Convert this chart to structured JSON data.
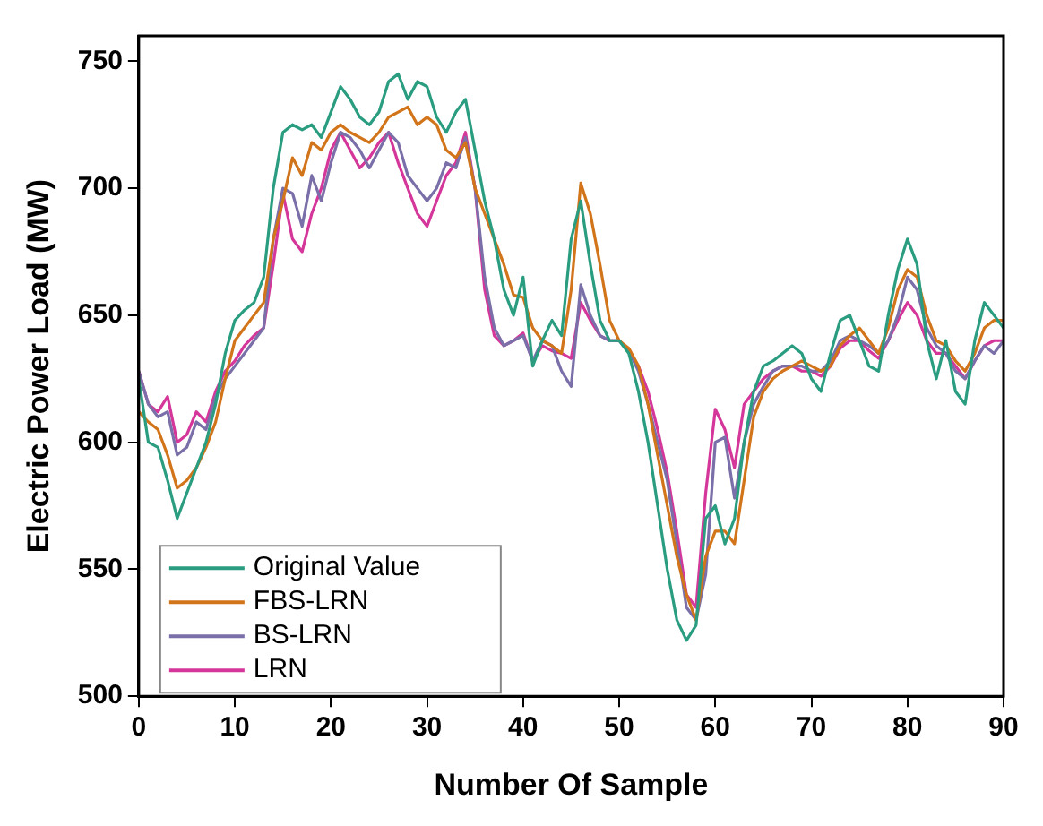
{
  "chart_data": {
    "type": "line",
    "xlabel": "Number Of Sample",
    "ylabel": "Electric Power Load (MW)",
    "xlim": [
      0,
      90
    ],
    "xticks": [
      0,
      10,
      20,
      30,
      40,
      50,
      60,
      70,
      80,
      90
    ],
    "ylim": [
      500,
      760
    ],
    "yticks": [
      500,
      550,
      600,
      650,
      700,
      750
    ],
    "x": [
      0,
      1,
      2,
      3,
      4,
      5,
      6,
      7,
      8,
      9,
      10,
      11,
      12,
      13,
      14,
      15,
      16,
      17,
      18,
      19,
      20,
      21,
      22,
      23,
      24,
      25,
      26,
      27,
      28,
      29,
      30,
      31,
      32,
      33,
      34,
      35,
      36,
      37,
      38,
      39,
      40,
      41,
      42,
      43,
      44,
      45,
      46,
      47,
      48,
      49,
      50,
      51,
      52,
      53,
      54,
      55,
      56,
      57,
      58,
      59,
      60,
      61,
      62,
      63,
      64,
      65,
      66,
      67,
      68,
      69,
      70,
      71,
      72,
      73,
      74,
      75,
      76,
      77,
      78,
      79,
      80,
      81,
      82,
      83,
      84,
      85,
      86,
      87,
      88,
      89,
      90
    ],
    "legend": "bottom left",
    "grid": false,
    "marker": "none",
    "line_style": "solid",
    "series": [
      {
        "name": "Original Value",
        "color": "#2a9d80",
        "values": [
          625,
          600,
          598,
          585,
          570,
          580,
          590,
          600,
          615,
          635,
          648,
          652,
          655,
          665,
          700,
          722,
          725,
          723,
          725,
          720,
          730,
          740,
          735,
          728,
          725,
          730,
          742,
          745,
          735,
          742,
          740,
          728,
          722,
          730,
          735,
          715,
          695,
          680,
          660,
          650,
          665,
          630,
          640,
          648,
          642,
          680,
          695,
          670,
          648,
          640,
          640,
          635,
          620,
          600,
          575,
          550,
          530,
          522,
          528,
          570,
          575,
          560,
          570,
          600,
          620,
          630,
          632,
          635,
          638,
          635,
          625,
          620,
          635,
          648,
          650,
          640,
          630,
          628,
          650,
          668,
          680,
          670,
          640,
          625,
          640,
          620,
          615,
          640,
          655,
          650,
          645
        ]
      },
      {
        "name": "FBS-LRN",
        "color": "#d2741a",
        "values": [
          612,
          608,
          605,
          595,
          582,
          585,
          590,
          598,
          608,
          625,
          640,
          645,
          650,
          655,
          680,
          695,
          712,
          705,
          718,
          715,
          722,
          725,
          722,
          720,
          718,
          722,
          728,
          730,
          732,
          725,
          728,
          725,
          715,
          712,
          718,
          700,
          690,
          680,
          670,
          658,
          657,
          645,
          640,
          638,
          635,
          660,
          702,
          690,
          670,
          648,
          640,
          637,
          630,
          615,
          595,
          575,
          555,
          540,
          530,
          555,
          565,
          565,
          560,
          585,
          610,
          620,
          625,
          628,
          630,
          632,
          630,
          628,
          630,
          638,
          642,
          645,
          640,
          635,
          645,
          660,
          668,
          665,
          650,
          640,
          638,
          632,
          628,
          635,
          645,
          648,
          648
        ]
      },
      {
        "name": "BS-LRN",
        "color": "#7a6fa8",
        "values": [
          628,
          615,
          610,
          612,
          595,
          598,
          608,
          605,
          618,
          625,
          630,
          635,
          640,
          645,
          680,
          700,
          698,
          685,
          705,
          695,
          710,
          722,
          720,
          715,
          708,
          715,
          722,
          718,
          705,
          700,
          695,
          700,
          710,
          708,
          720,
          700,
          665,
          645,
          638,
          640,
          642,
          632,
          640,
          638,
          628,
          622,
          662,
          650,
          642,
          640,
          640,
          636,
          628,
          615,
          600,
          585,
          560,
          535,
          530,
          548,
          600,
          602,
          578,
          600,
          615,
          622,
          628,
          630,
          630,
          630,
          628,
          628,
          632,
          640,
          642,
          640,
          638,
          635,
          640,
          650,
          665,
          660,
          645,
          638,
          635,
          628,
          625,
          632,
          638,
          635,
          640
        ]
      },
      {
        "name": "LRN",
        "color": "#d4369a",
        "values": [
          628,
          615,
          612,
          618,
          600,
          603,
          612,
          608,
          620,
          628,
          632,
          638,
          642,
          645,
          670,
          698,
          680,
          675,
          690,
          700,
          715,
          722,
          715,
          708,
          712,
          718,
          722,
          710,
          700,
          690,
          685,
          695,
          705,
          710,
          722,
          700,
          660,
          642,
          638,
          640,
          643,
          632,
          638,
          636,
          635,
          633,
          655,
          648,
          642,
          640,
          640,
          636,
          630,
          620,
          605,
          588,
          565,
          540,
          535,
          580,
          613,
          605,
          590,
          615,
          620,
          625,
          628,
          630,
          630,
          628,
          628,
          626,
          630,
          637,
          640,
          640,
          636,
          633,
          640,
          648,
          655,
          650,
          640,
          635,
          635,
          630,
          625,
          632,
          638,
          640,
          640
        ]
      }
    ]
  }
}
